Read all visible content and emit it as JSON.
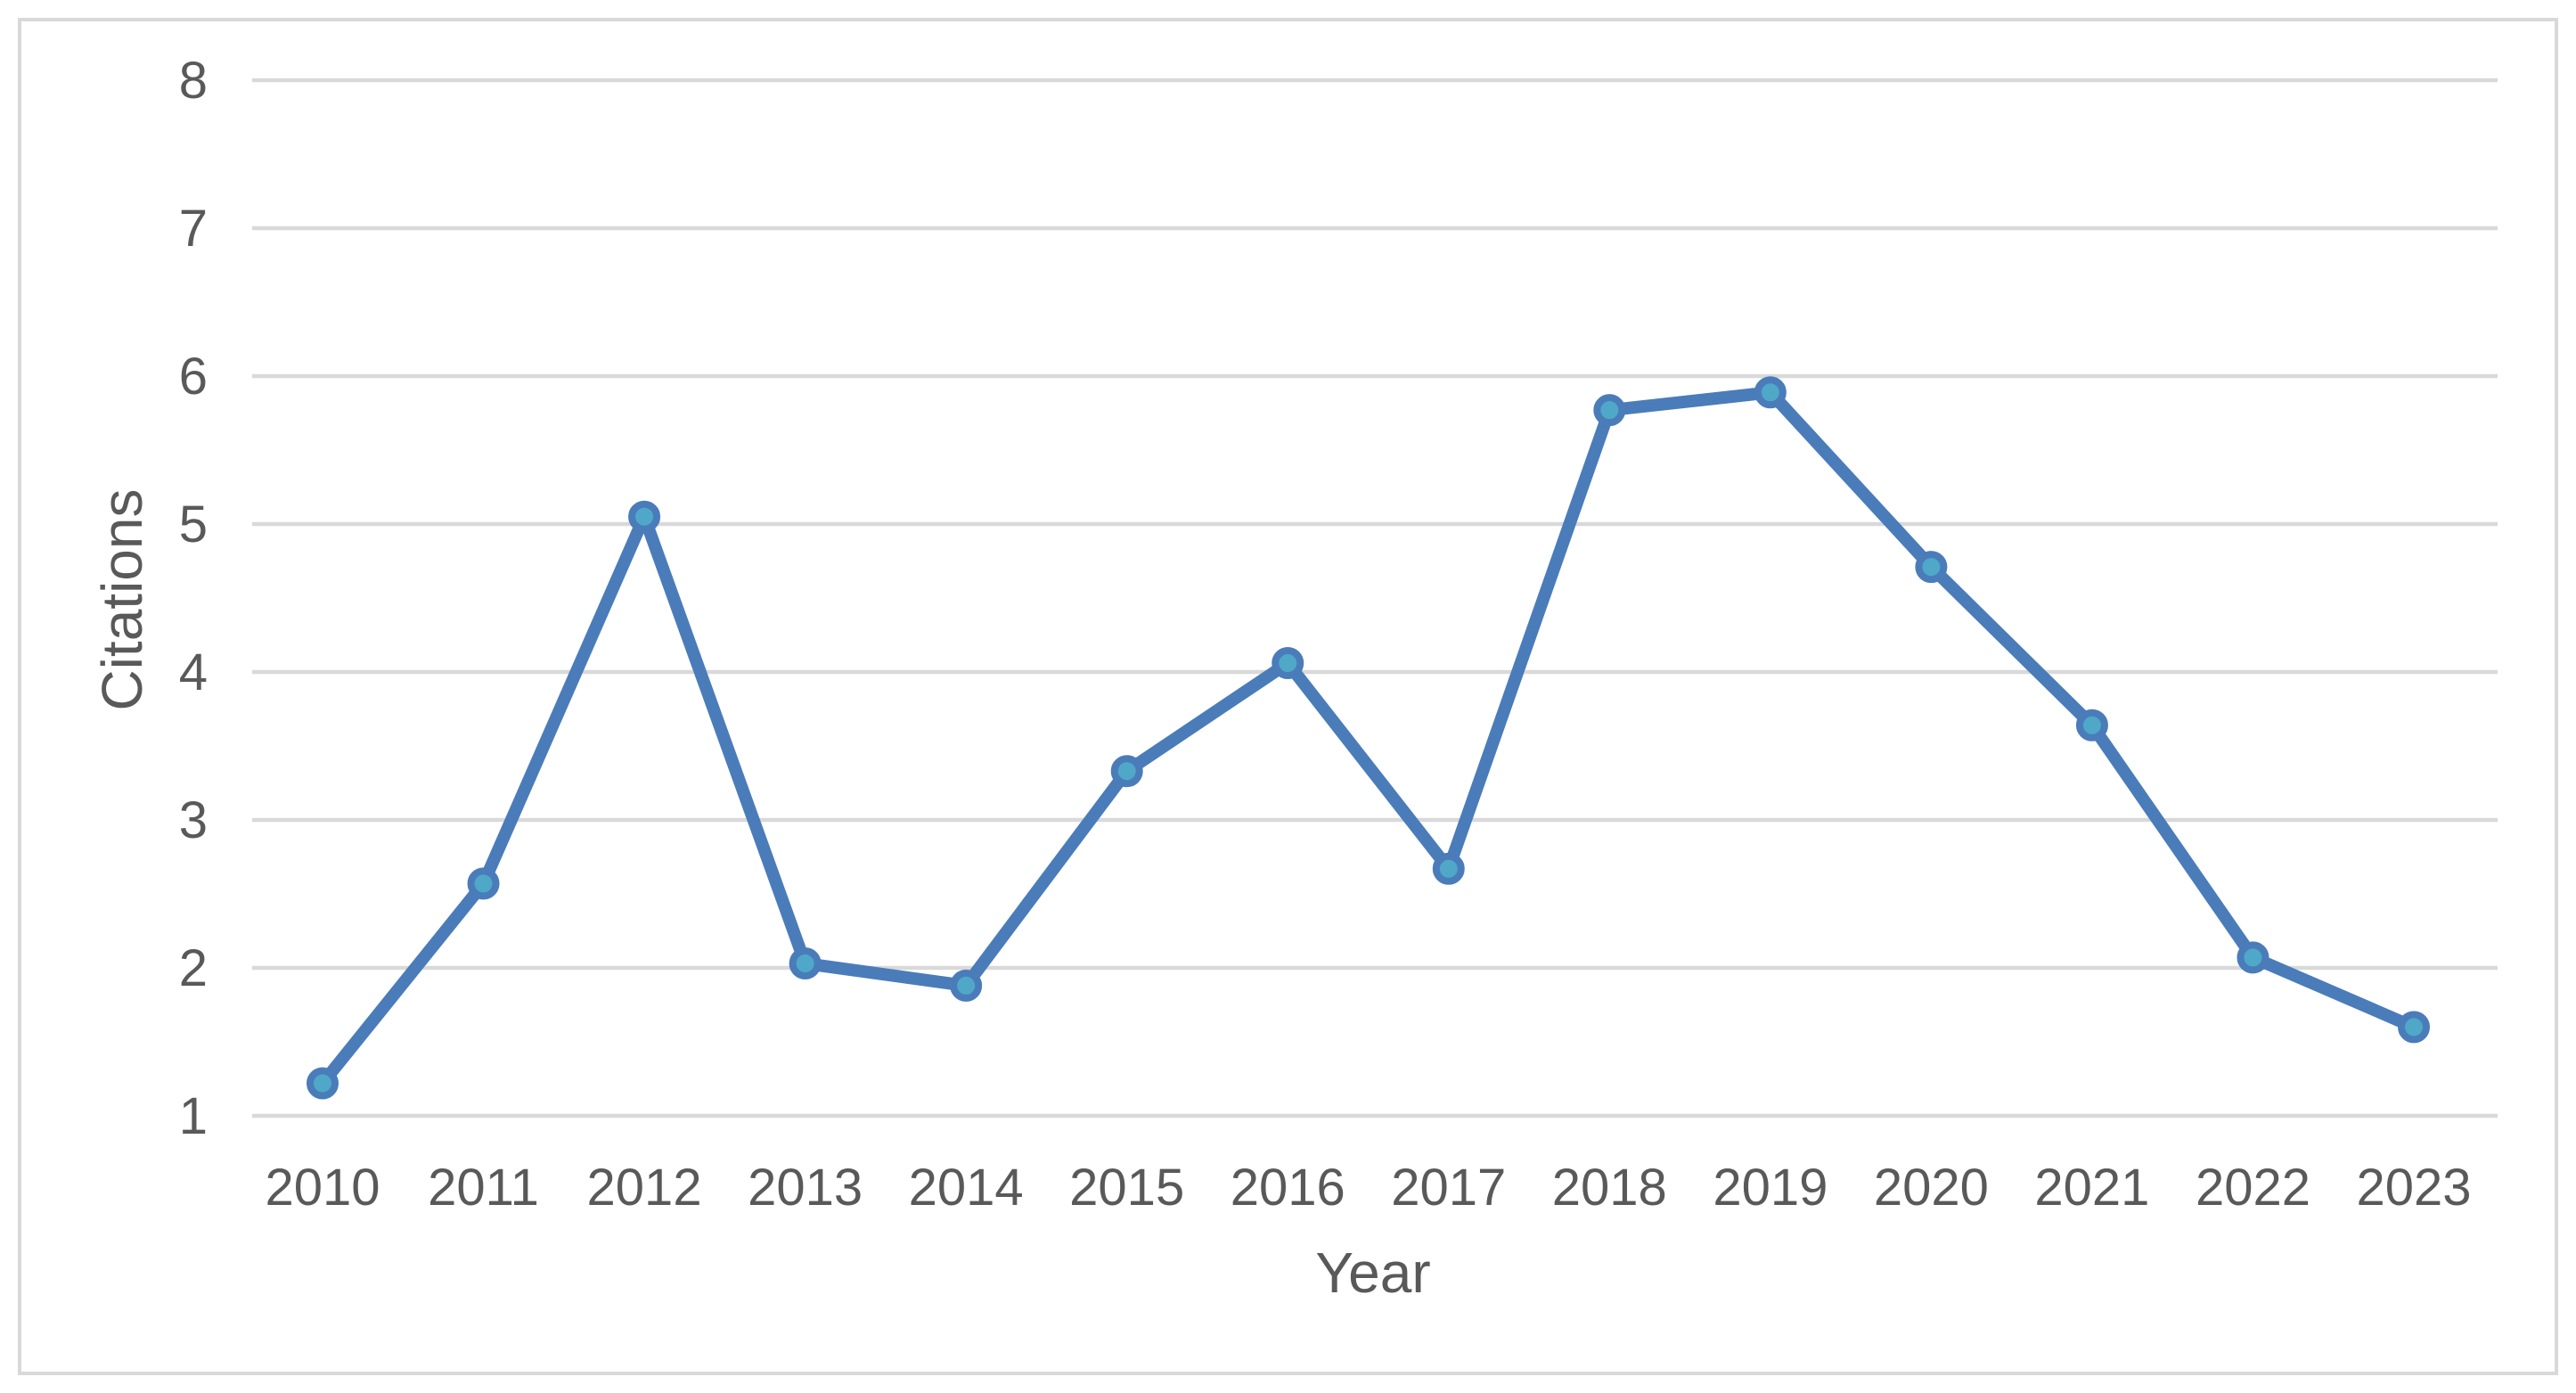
{
  "chart_data": {
    "type": "line",
    "title": "",
    "xlabel": "Year",
    "ylabel": "Citations",
    "categories": [
      "2010",
      "2011",
      "2012",
      "2013",
      "2014",
      "2015",
      "2016",
      "2017",
      "2018",
      "2019",
      "2020",
      "2021",
      "2022",
      "2023"
    ],
    "values": [
      1.22,
      2.57,
      5.05,
      2.03,
      1.88,
      3.33,
      4.06,
      2.67,
      5.77,
      5.89,
      4.71,
      3.64,
      2.07,
      1.6
    ],
    "ylim": [
      1,
      8
    ],
    "yticks": [
      1,
      2,
      3,
      4,
      5,
      6,
      7,
      8
    ],
    "grid": "horizontal",
    "legend_position": "none",
    "marker": "circle",
    "colors": {
      "line": "#4A7CBA",
      "marker_fill": "#4FA8C8",
      "marker_ring": "#4A7CBA",
      "gridline": "#D9D9D9",
      "text": "#595959",
      "frame_border": "#D9D9D9",
      "background": "#FFFFFF"
    }
  }
}
